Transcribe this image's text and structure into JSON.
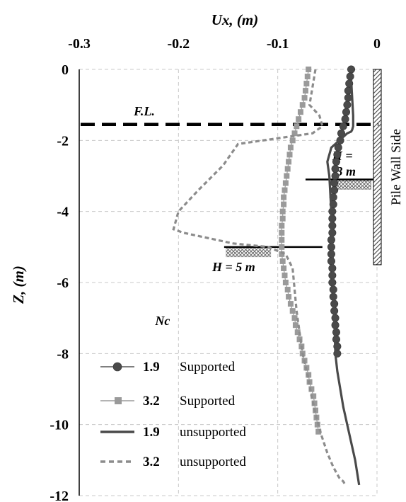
{
  "chart_data": {
    "type": "line",
    "xlabel": "Ux, (m)",
    "ylabel": "Z, (m)",
    "xlim": [
      -0.3,
      0
    ],
    "ylim": [
      -12,
      0
    ],
    "x_ticks": [
      -0.3,
      -0.2,
      -0.1,
      0
    ],
    "y_ticks": [
      0,
      -2,
      -4,
      -6,
      -8,
      -10,
      -12
    ],
    "x_tick_labels": [
      "-0.3",
      "-0.2",
      "-0.1",
      "0"
    ],
    "y_tick_labels": [
      "0",
      "-2",
      "-4",
      "-6",
      "-8",
      "-10",
      "-12"
    ],
    "grid": true,
    "x_axis_position": "top",
    "legend_position": "bottom-left",
    "series": [
      {
        "name": "1.9",
        "suffix": "Supported",
        "style": "circle-markers",
        "color": "#4a4a4a",
        "x": [
          -0.026,
          -0.027,
          -0.028,
          -0.029,
          -0.029,
          -0.03,
          -0.031,
          -0.032,
          -0.034,
          -0.036,
          -0.037,
          -0.039,
          -0.04,
          -0.041,
          -0.042,
          -0.042,
          -0.043,
          -0.043,
          -0.044,
          -0.044,
          -0.045,
          -0.045,
          -0.045,
          -0.045,
          -0.046,
          -0.046,
          -0.046,
          -0.046,
          -0.045,
          -0.045,
          -0.045,
          -0.044,
          -0.044,
          -0.043,
          -0.043,
          -0.042,
          -0.042,
          -0.041,
          -0.041,
          -0.04,
          -0.04
        ],
        "y": [
          0,
          -0.2,
          -0.4,
          -0.6,
          -0.8,
          -1.0,
          -1.2,
          -1.4,
          -1.6,
          -1.8,
          -2.0,
          -2.2,
          -2.4,
          -2.6,
          -2.8,
          -3.0,
          -3.2,
          -3.4,
          -3.6,
          -3.8,
          -4.0,
          -4.2,
          -4.4,
          -4.6,
          -4.8,
          -5.0,
          -5.2,
          -5.4,
          -5.6,
          -5.8,
          -6.0,
          -6.2,
          -6.4,
          -6.6,
          -6.8,
          -7.0,
          -7.2,
          -7.4,
          -7.6,
          -7.8,
          -8.0
        ]
      },
      {
        "name": "3.2",
        "suffix": "Supported",
        "style": "square-markers",
        "color": "#9a9a9a",
        "x": [
          -0.069,
          -0.07,
          -0.071,
          -0.072,
          -0.073,
          -0.075,
          -0.077,
          -0.079,
          -0.081,
          -0.083,
          -0.085,
          -0.087,
          -0.088,
          -0.089,
          -0.09,
          -0.091,
          -0.092,
          -0.093,
          -0.094,
          -0.094,
          -0.095,
          -0.095,
          -0.096,
          -0.096,
          -0.096,
          -0.096,
          -0.096,
          -0.095,
          -0.094,
          -0.093,
          -0.092,
          -0.09,
          -0.089,
          -0.087,
          -0.085,
          -0.083,
          -0.082,
          -0.08,
          -0.078,
          -0.076,
          -0.075,
          -0.073,
          -0.071,
          -0.069,
          -0.068,
          -0.066,
          -0.064,
          -0.063,
          -0.062,
          -0.061,
          -0.06,
          -0.059
        ],
        "y": [
          0,
          -0.2,
          -0.4,
          -0.6,
          -0.8,
          -1.0,
          -1.2,
          -1.4,
          -1.6,
          -1.8,
          -2.0,
          -2.2,
          -2.4,
          -2.6,
          -2.8,
          -3.0,
          -3.2,
          -3.4,
          -3.6,
          -3.8,
          -4.0,
          -4.2,
          -4.4,
          -4.6,
          -4.8,
          -5.0,
          -5.2,
          -5.4,
          -5.6,
          -5.8,
          -6.0,
          -6.2,
          -6.4,
          -6.6,
          -6.8,
          -7.0,
          -7.2,
          -7.4,
          -7.6,
          -7.8,
          -8.0,
          -8.2,
          -8.4,
          -8.6,
          -8.8,
          -9.0,
          -9.2,
          -9.4,
          -9.6,
          -9.8,
          -10.0,
          -10.2
        ]
      },
      {
        "name": "1.9",
        "suffix": "unsupported",
        "style": "solid",
        "color": "#4a4a4a",
        "x": [
          -0.026,
          -0.025,
          -0.024,
          -0.024,
          -0.025,
          -0.026,
          -0.03,
          -0.046,
          -0.05,
          -0.048,
          -0.046,
          -0.045,
          -0.044,
          -0.043,
          -0.042,
          -0.04,
          -0.037,
          -0.034,
          -0.03,
          -0.026,
          -0.022,
          -0.018
        ],
        "y": [
          -0.3,
          -0.8,
          -1.3,
          -1.6,
          -1.7,
          -1.75,
          -1.8,
          -2.2,
          -2.6,
          -3.0,
          -4.0,
          -5.0,
          -6.0,
          -7.0,
          -8.0,
          -8.5,
          -9.0,
          -9.5,
          -10.0,
          -10.5,
          -11.0,
          -11.7
        ]
      },
      {
        "name": "3.2",
        "suffix": "unsupported",
        "style": "dashed",
        "color": "#8c8c8c",
        "x": [
          -0.062,
          -0.065,
          -0.068,
          -0.058,
          -0.055,
          -0.065,
          -0.09,
          -0.14,
          -0.155,
          -0.18,
          -0.2,
          -0.205,
          -0.195,
          -0.145,
          -0.11,
          -0.092,
          -0.085,
          -0.083,
          -0.081,
          -0.078,
          -0.075,
          -0.07,
          -0.066,
          -0.061,
          -0.056,
          -0.05,
          -0.044,
          -0.038,
          -0.034,
          -0.032
        ],
        "y": [
          0,
          -0.5,
          -1.0,
          -1.3,
          -1.6,
          -1.8,
          -1.9,
          -2.1,
          -2.7,
          -3.4,
          -4.0,
          -4.5,
          -4.6,
          -4.9,
          -5.0,
          -5.2,
          -5.6,
          -6.2,
          -6.8,
          -7.4,
          -8.0,
          -8.6,
          -9.2,
          -9.8,
          -10.3,
          -10.8,
          -11.2,
          -11.5,
          -11.6,
          -11.7
        ]
      }
    ],
    "annotations": {
      "fl_label": "F.L.",
      "fl_depth": -1.55,
      "h5_label": "H = 5 m",
      "h5_depth": -5.0,
      "h3_label_line1": "H =",
      "h3_label_line2": "3 m",
      "h3_depth": -3.1,
      "nc_label": "Nc",
      "wall_label": "Pile Wall Side",
      "wall_bottom": -5.5
    }
  }
}
